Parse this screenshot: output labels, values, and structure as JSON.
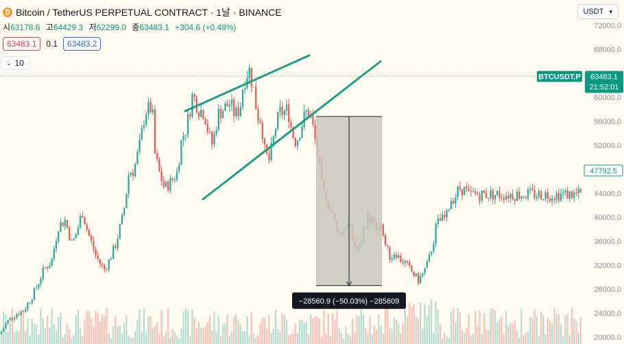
{
  "header": {
    "title": "Bitcoin / TetherUS PERPETUAL CONTRACT · 1날 · BINANCE",
    "icon": "bitcoin-icon"
  },
  "ohlc": {
    "open_label": "시",
    "open": "63178.6",
    "high_label": "고",
    "high": "64429.3",
    "low_label": "저",
    "low": "62299.0",
    "close_label": "종",
    "close": "63483.1",
    "change": "+304.6 (+0.48%)"
  },
  "prices": {
    "sell": "63483.1",
    "spread": "0.1",
    "buy": "63483.2"
  },
  "indicator_toggle": {
    "label": "10"
  },
  "currency": {
    "label": "USDT"
  },
  "colors": {
    "up": "#26a69a",
    "down": "#ef5350",
    "accent": "#089981",
    "drawing": "#16a085",
    "measure_fill": "#c9c7bb",
    "badge_bg": "#131722"
  },
  "chart_data": {
    "type": "candlestick",
    "symbol_label": "BTCUSDT.P",
    "last_price": "63483.1",
    "countdown": "21:52:01",
    "last_value": 63483.1,
    "highlight_label": "47792.5",
    "highlight_value": 47792.5,
    "y_ticks": [
      20000,
      24000,
      28000,
      32000,
      36000,
      40000,
      44000,
      48000,
      52000,
      56000,
      60000,
      64000,
      68000,
      72000
    ],
    "y_tick_labels": [
      "20000.0",
      "24000.0",
      "28000.0",
      "32000.0",
      "36000.0",
      "40000.0",
      "44000.0",
      "48000.0",
      "52000.0",
      "56000.0",
      "60000.0",
      "64000.0",
      "68000.0",
      "72000.0"
    ],
    "ylim": [
      20000,
      74000
    ],
    "close_path": [
      [
        0,
        20500
      ],
      [
        10,
        22500
      ],
      [
        22,
        23800
      ],
      [
        35,
        24500
      ],
      [
        50,
        27500
      ],
      [
        65,
        31500
      ],
      [
        75,
        32500
      ],
      [
        85,
        38500
      ],
      [
        95,
        39500
      ],
      [
        105,
        35500
      ],
      [
        112,
        37500
      ],
      [
        120,
        41000
      ],
      [
        128,
        37500
      ],
      [
        140,
        33500
      ],
      [
        152,
        31200
      ],
      [
        160,
        33000
      ],
      [
        168,
        35200
      ],
      [
        180,
        40500
      ],
      [
        188,
        47500
      ],
      [
        195,
        47800
      ],
      [
        203,
        51500
      ],
      [
        212,
        57800
      ],
      [
        222,
        58200
      ],
      [
        226,
        50500
      ],
      [
        232,
        47500
      ],
      [
        240,
        44800
      ],
      [
        250,
        46000
      ],
      [
        258,
        47500
      ],
      [
        265,
        53000
      ],
      [
        272,
        55000
      ],
      [
        281,
        60500
      ],
      [
        290,
        58000
      ],
      [
        298,
        57500
      ],
      [
        305,
        53500
      ],
      [
        310,
        52000
      ],
      [
        318,
        57200
      ],
      [
        325,
        58000
      ],
      [
        335,
        59000
      ],
      [
        343,
        57000
      ],
      [
        350,
        58200
      ],
      [
        355,
        62500
      ],
      [
        363,
        64800
      ],
      [
        370,
        61300
      ],
      [
        375,
        57000
      ],
      [
        381,
        56200
      ],
      [
        386,
        51000
      ],
      [
        392,
        49300
      ],
      [
        398,
        52500
      ],
      [
        402,
        55000
      ],
      [
        408,
        57500
      ],
      [
        414,
        57500
      ],
      [
        420,
        58000
      ],
      [
        426,
        54000
      ],
      [
        432,
        52500
      ],
      [
        440,
        55400
      ],
      [
        446,
        57500
      ],
      [
        452,
        57300
      ],
      [
        458,
        54000
      ],
      [
        463,
        50400
      ],
      [
        470,
        44500
      ],
      [
        476,
        43300
      ],
      [
        483,
        41000
      ],
      [
        490,
        38500
      ],
      [
        496,
        37000
      ],
      [
        503,
        38500
      ],
      [
        509,
        38600
      ],
      [
        516,
        35700
      ],
      [
        522,
        34000
      ],
      [
        530,
        37800
      ],
      [
        536,
        40000
      ],
      [
        544,
        39000
      ],
      [
        550,
        37500
      ],
      [
        556,
        38000
      ],
      [
        563,
        35000
      ],
      [
        570,
        33100
      ],
      [
        576,
        34400
      ],
      [
        583,
        33000
      ],
      [
        590,
        32500
      ],
      [
        596,
        31500
      ],
      [
        603,
        30500
      ],
      [
        610,
        29500
      ],
      [
        618,
        30800
      ],
      [
        625,
        32700
      ],
      [
        632,
        36000
      ],
      [
        637,
        39000
      ],
      [
        644,
        39500
      ],
      [
        651,
        40000
      ],
      [
        657,
        43000
      ],
      [
        664,
        43500
      ],
      [
        670,
        44900
      ],
      [
        675,
        44700
      ],
      [
        680,
        44300
      ],
      [
        683,
        43600
      ],
      [
        687,
        43800
      ]
    ],
    "drawings": {
      "wedge_upper": [
        [
          270,
          57700
        ],
        [
          451,
          67000
        ]
      ],
      "wedge_lower": [
        [
          296,
          43000
        ],
        [
          555,
          66000
        ]
      ],
      "channel_lower_pair_note": "",
      "measure": {
        "x1": 461,
        "x2": 557,
        "y_top": 56800,
        "y_bottom": 28600,
        "label": "−28560.9 (−50.03%) −285609"
      }
    }
  }
}
